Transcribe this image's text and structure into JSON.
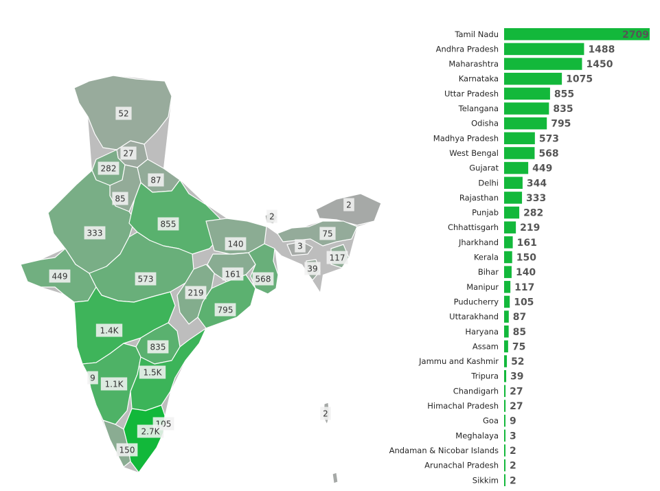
{
  "colors": {
    "bar": "#13b83b",
    "map_low": "#a9a9a9",
    "map_high": "#12b83a",
    "map_stroke": "#ffffff"
  },
  "chart_data": [
    {
      "type": "bar",
      "orientation": "horizontal",
      "categories": [
        "Tamil Nadu",
        "Andhra Pradesh",
        "Maharashtra",
        "Karnataka",
        "Uttar Pradesh",
        "Telangana",
        "Odisha",
        "Madhya Pradesh",
        "West Bengal",
        "Gujarat",
        "Delhi",
        "Rajasthan",
        "Punjab",
        "Chhattisgarh",
        "Jharkhand",
        "Kerala",
        "Bihar",
        "Manipur",
        "Puducherry",
        "Uttarakhand",
        "Haryana",
        "Assam",
        "Jammu and Kashmir",
        "Tripura",
        "Chandigarh",
        "Himachal Pradesh",
        "Goa",
        "Meghalaya",
        "Andaman & Nicobar Islands",
        "Arunachal Pradesh",
        "Sikkim"
      ],
      "values": [
        2709,
        1488,
        1450,
        1075,
        855,
        835,
        795,
        573,
        568,
        449,
        344,
        333,
        282,
        219,
        161,
        150,
        140,
        117,
        105,
        87,
        85,
        75,
        52,
        39,
        27,
        27,
        9,
        3,
        2,
        2,
        2
      ],
      "value_labels": [
        "2709",
        "1488",
        "1450",
        "1075",
        "855",
        "835",
        "795",
        "573",
        "568",
        "449",
        "344",
        "333",
        "282",
        "219",
        "161",
        "150",
        "140",
        "117",
        "105",
        "87",
        "85",
        "75",
        "52",
        "39",
        "27",
        "27",
        "9",
        "3",
        "2",
        "2",
        "2"
      ],
      "xlim": [
        0,
        2709
      ],
      "grid": false,
      "legend": "none"
    },
    {
      "type": "map",
      "regions": [
        {
          "name": "Jammu and Kashmir",
          "value": 52,
          "label": "52"
        },
        {
          "name": "Himachal Pradesh",
          "value": 27,
          "label": "27"
        },
        {
          "name": "Punjab",
          "value": 282,
          "label": "282"
        },
        {
          "name": "Uttarakhand",
          "value": 87,
          "label": "87"
        },
        {
          "name": "Haryana",
          "value": 85,
          "label": "85"
        },
        {
          "name": "Rajasthan",
          "value": 333,
          "label": "333"
        },
        {
          "name": "Uttar Pradesh",
          "value": 855,
          "label": "855"
        },
        {
          "name": "Bihar",
          "value": 140,
          "label": "140"
        },
        {
          "name": "Sikkim",
          "value": 2,
          "label": "2"
        },
        {
          "name": "Arunachal Pradesh",
          "value": 2,
          "label": "2"
        },
        {
          "name": "Assam",
          "value": 75,
          "label": "75"
        },
        {
          "name": "Meghalaya",
          "value": 3,
          "label": "3"
        },
        {
          "name": "Manipur",
          "value": 117,
          "label": "117"
        },
        {
          "name": "Tripura",
          "value": 39,
          "label": "39"
        },
        {
          "name": "Gujarat",
          "value": 449,
          "label": "449"
        },
        {
          "name": "Madhya Pradesh",
          "value": 573,
          "label": "573"
        },
        {
          "name": "Jharkhand",
          "value": 161,
          "label": "161"
        },
        {
          "name": "West Bengal",
          "value": 568,
          "label": "568"
        },
        {
          "name": "Chhattisgarh",
          "value": 219,
          "label": "219"
        },
        {
          "name": "Odisha",
          "value": 795,
          "label": "795"
        },
        {
          "name": "Maharashtra",
          "value": 1450,
          "label": "1.4K"
        },
        {
          "name": "Telangana",
          "value": 835,
          "label": "835"
        },
        {
          "name": "Goa",
          "value": 9,
          "label": "9"
        },
        {
          "name": "Karnataka",
          "value": 1075,
          "label": "1.1K"
        },
        {
          "name": "Andhra Pradesh",
          "value": 1488,
          "label": "1.5K"
        },
        {
          "name": "Puducherry",
          "value": 105,
          "label": "105"
        },
        {
          "name": "Tamil Nadu",
          "value": 2709,
          "label": "2.7K"
        },
        {
          "name": "Kerala",
          "value": 150,
          "label": "150"
        },
        {
          "name": "Andaman & Nicobar Islands",
          "value": 2,
          "label": "2"
        }
      ]
    }
  ]
}
